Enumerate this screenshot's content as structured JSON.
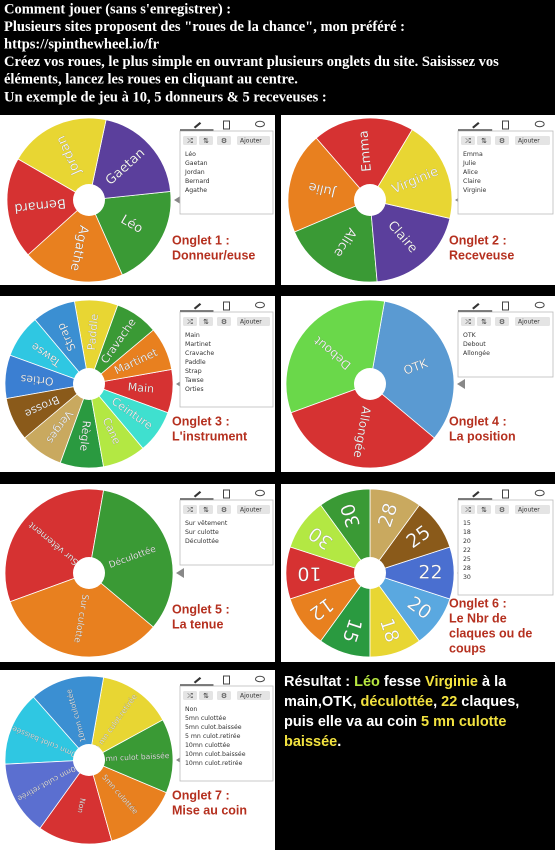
{
  "header": {
    "lines": [
      "Comment jouer (sans s'enregistrer) :",
      "Plusieurs sites proposent des \"roues de la chance\", mon préféré :",
      "https://spinthewheel.io/fr",
      "Créez vos roues, le plus simple en ouvrant plusieurs onglets du site. Saisissez vos",
      "éléments, lancez les roues en cliquant au centre.",
      "Un exemple de jeu à 10, 5 donneurs & 5 receveuses :"
    ]
  },
  "ui": {
    "add_button": "Ajouter"
  },
  "panels": [
    {
      "caption": [
        "Onglet 1 :",
        "Donneur/euse"
      ],
      "segments": [
        {
          "label": "Léo",
          "color": "#3a9a35"
        },
        {
          "label": "Gaetan",
          "color": "#5b3f9c"
        },
        {
          "label": "Jordan",
          "color": "#e8d633"
        },
        {
          "label": "Bernard",
          "color": "#d63232"
        },
        {
          "label": "Agathe",
          "color": "#e8801f"
        }
      ],
      "entries": [
        "Léo",
        "Gaetan",
        "Jordan",
        "Bernard",
        "Agathe"
      ]
    },
    {
      "caption": [
        "Onglet 2 :",
        "Receveuse"
      ],
      "segments": [
        {
          "label": "Emma",
          "color": "#d63232"
        },
        {
          "label": "Julie",
          "color": "#e8801f"
        },
        {
          "label": "Alice",
          "color": "#3a9a35"
        },
        {
          "label": "Claire",
          "color": "#5b3f9c"
        },
        {
          "label": "Virginie",
          "color": "#e8d633"
        }
      ],
      "entries": [
        "Emma",
        "Julie",
        "Alice",
        "Claire",
        "Virginie"
      ]
    },
    {
      "caption": [
        "Onglet 3 :",
        "L'instrument"
      ],
      "segments": [
        {
          "label": "Main",
          "color": "#d63232"
        },
        {
          "label": "Martinet",
          "color": "#e8801f"
        },
        {
          "label": "Cravache",
          "color": "#3a9a35"
        },
        {
          "label": "Paddle",
          "color": "#e8d633"
        },
        {
          "label": "Strap",
          "color": "#3b8fd2"
        },
        {
          "label": "Tawse",
          "color": "#2fc7e2"
        },
        {
          "label": "Orties",
          "color": "#3b7fd2"
        },
        {
          "label": "Brosse",
          "color": "#8a5a1a"
        },
        {
          "label": "Verges",
          "color": "#c9a95f"
        },
        {
          "label": "Règle",
          "color": "#2a9a40"
        },
        {
          "label": "Cane",
          "color": "#b3e843"
        },
        {
          "label": "Ceinture",
          "color": "#3fe0cf"
        }
      ],
      "entries": [
        "Main",
        "Martinet",
        "Cravache",
        "Paddle",
        "Strap",
        "Tawse",
        "Orties"
      ]
    },
    {
      "caption": [
        "Onglet 4 :",
        "La position"
      ],
      "segments": [
        {
          "label": "OTK",
          "color": "#5a9ad2"
        },
        {
          "label": "Debout",
          "color": "#6ad84a"
        },
        {
          "label": "Allongée",
          "color": "#d63232"
        }
      ],
      "entries": [
        "OTK",
        "Debout",
        "Allongée"
      ]
    },
    {
      "caption": [
        "Onglet 5 :",
        "La tenue"
      ],
      "segments": [
        {
          "label": "Sur vêtement",
          "color": "#d63232"
        },
        {
          "label": "Sur culotte",
          "color": "#e8801f"
        },
        {
          "label": "Déculottée",
          "color": "#3a9a35"
        }
      ],
      "entries": [
        "Sur vêtement",
        "Sur culotte",
        "Déculottée"
      ]
    },
    {
      "caption": [
        "Onglet 6 :",
        "Le Nbr de",
        "claques ou de",
        "coups"
      ],
      "segments": [
        {
          "label": "15",
          "color": "#2a9a40"
        },
        {
          "label": "18",
          "color": "#e8d633"
        },
        {
          "label": "20",
          "color": "#5aa8e0"
        },
        {
          "label": "22",
          "color": "#4a6fd0"
        },
        {
          "label": "25",
          "color": "#8a5a1a"
        },
        {
          "label": "28",
          "color": "#c9a95f"
        },
        {
          "label": "30",
          "color": "#3a9a35"
        },
        {
          "label": "30",
          "color": "#b3e843"
        },
        {
          "label": "10",
          "color": "#d63232"
        },
        {
          "label": "12",
          "color": "#e8801f"
        }
      ],
      "entries": [
        "15",
        "18",
        "20",
        "22",
        "25",
        "28",
        "30"
      ]
    },
    {
      "caption": [
        "Onglet 7 :",
        "Mise au coin"
      ],
      "segments": [
        {
          "label": "Non",
          "color": "#d63232"
        },
        {
          "label": "5mn culottée",
          "color": "#e8801f"
        },
        {
          "label": "5mn culot baissée",
          "color": "#3a9a35"
        },
        {
          "label": "5 mn culot.retirée",
          "color": "#e8d633"
        },
        {
          "label": "10mn culottée",
          "color": "#3b8fd2"
        },
        {
          "label": "10mn culot.baissée",
          "color": "#2fc7e2"
        },
        {
          "label": "10mn culot.retirée",
          "color": "#5b6fd0"
        }
      ],
      "entries": [
        "Non",
        "5mn culottée",
        "5mn culot.baissée",
        "5 mn culot.retirée",
        "10mn culottée",
        "10mn culot.baissée",
        "10mn culot.retirée"
      ]
    }
  ],
  "result": {
    "runs": [
      {
        "text": "Résultat : ",
        "color": "#ffffff"
      },
      {
        "text": "Léo",
        "color": "#b8e840"
      },
      {
        "text": " fesse ",
        "color": "#ffffff"
      },
      {
        "text": "Virginie",
        "color": "#f2e23f"
      },
      {
        "text": " à la main,OTK, ",
        "color": "#ffffff"
      },
      {
        "text": "déculottée",
        "color": "#f2e23f"
      },
      {
        "text": ", ",
        "color": "#ffffff"
      },
      {
        "text": "22",
        "color": "#f2e23f"
      },
      {
        "text": " claques, puis elle va au coin ",
        "color": "#ffffff"
      },
      {
        "text": "5 mn culotte baissée",
        "color": "#f2e23f"
      },
      {
        "text": ".",
        "color": "#ffffff"
      }
    ]
  }
}
